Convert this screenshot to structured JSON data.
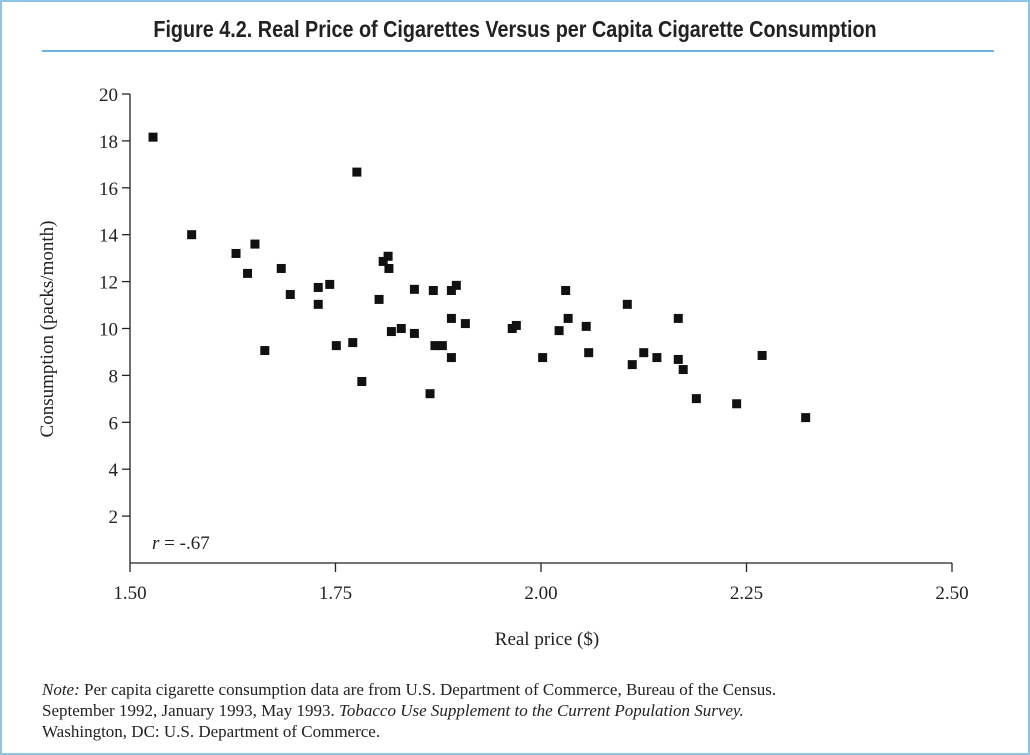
{
  "chart_data": {
    "type": "scatter",
    "title": "Figure 4.2. Real Price of Cigarettes Versus per Capita Cigarette Consumption",
    "x_label": "Real price ($)",
    "y_label": "Consumption (packs/month)",
    "annotation": {
      "variable": "r",
      "text": "= -.67"
    },
    "color": "#111111",
    "xlim": [
      1.5,
      2.5
    ],
    "ylim": [
      0,
      20
    ],
    "xticks": [
      {
        "value": 1.5,
        "label": "1.50"
      },
      1.75,
      {
        "value": 2.0,
        "label": "2.00"
      },
      2.25,
      {
        "value": 2.5,
        "label": "2.50"
      }
    ],
    "yticks": [
      2,
      4,
      6,
      8,
      10,
      12,
      14,
      16,
      18,
      20
    ],
    "grid": false,
    "x": [
      1.528,
      1.575,
      1.629,
      1.643,
      1.652,
      1.664,
      1.684,
      1.695,
      1.729,
      1.729,
      1.743,
      1.751,
      1.771,
      1.776,
      1.782,
      1.803,
      1.808,
      1.814,
      1.815,
      1.818,
      1.83,
      1.846,
      1.846,
      1.865,
      1.869,
      1.871,
      1.88,
      1.891,
      1.891,
      1.891,
      1.897,
      1.908,
      1.965,
      1.97,
      2.002,
      2.022,
      2.03,
      2.033,
      2.055,
      2.058,
      2.105,
      2.111,
      2.125,
      2.141,
      2.167,
      2.167,
      2.173,
      2.189,
      2.238,
      2.269,
      2.322
    ],
    "values": [
      18.16,
      14.0,
      13.2,
      12.35,
      13.6,
      9.06,
      12.56,
      11.45,
      11.75,
      11.03,
      11.88,
      9.27,
      9.4,
      16.67,
      7.74,
      11.24,
      12.86,
      13.08,
      12.56,
      9.87,
      10.0,
      11.67,
      9.79,
      7.22,
      11.62,
      9.27,
      9.27,
      10.43,
      11.62,
      8.76,
      11.84,
      10.21,
      10.0,
      10.13,
      8.76,
      9.91,
      11.62,
      10.43,
      10.09,
      8.97,
      11.03,
      8.46,
      8.97,
      8.76,
      10.43,
      8.68,
      8.25,
      7.01,
      6.79,
      8.85,
      6.2
    ],
    "note": {
      "label": "Note:",
      "line1": "Per capita cigarette consumption data are from U.S. Department of Commerce, Bureau of the Census.",
      "line2": "September 1992, January 1993, May 1993.",
      "source_title": "Tobacco Use Supplement to the Current Population Survey.",
      "line3": "Washington, DC: U.S. Department of Commerce."
    }
  }
}
